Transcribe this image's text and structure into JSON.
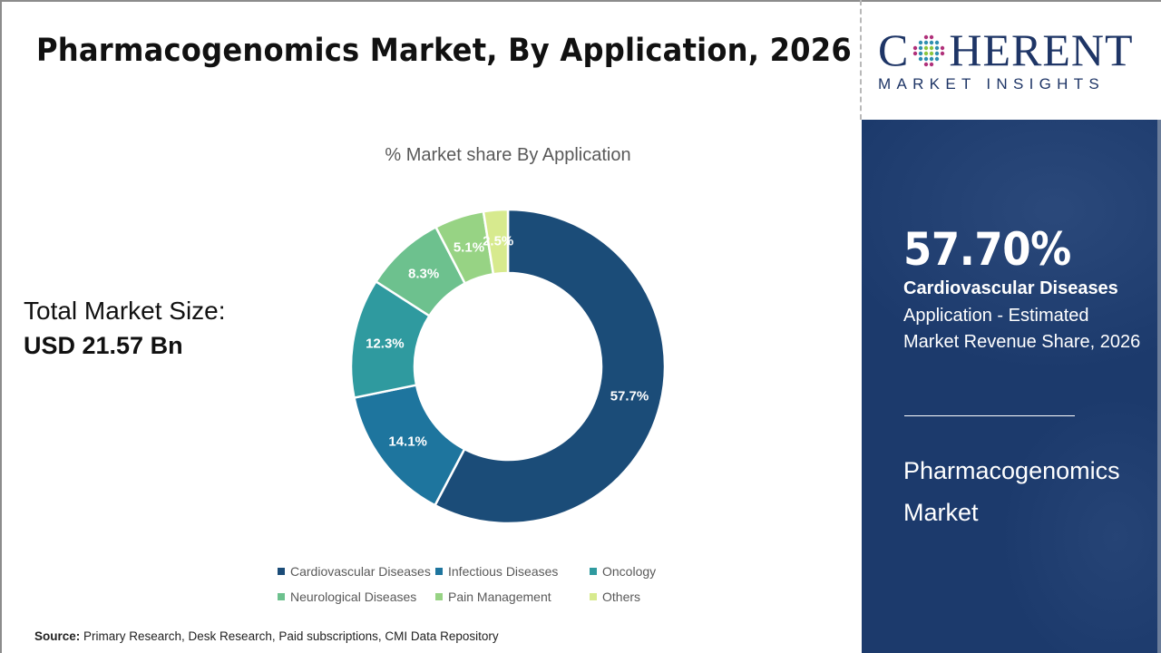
{
  "header": {
    "title": "Pharmacogenomics Market, By Application, 2026"
  },
  "logo": {
    "brand_first_letter": "C",
    "brand_rest": "HERENT",
    "tagline": "MARKET INSIGHTS"
  },
  "total_market": {
    "label": "Total Market Size:",
    "value": "USD 21.57 Bn"
  },
  "chart_data": {
    "type": "pie",
    "subtype": "donut",
    "title": "% Market share By Application",
    "categories": [
      "Cardiovascular Diseases",
      "Infectious Diseases",
      "Oncology",
      "Neurological Diseases",
      "Pain Management",
      "Others"
    ],
    "values": [
      57.7,
      14.1,
      12.3,
      8.3,
      5.1,
      2.5
    ],
    "data_labels": [
      "57.7%",
      "14.1%",
      "12.3%",
      "8.3%",
      "5.1%",
      "2.5%"
    ],
    "colors": [
      "#1b4c78",
      "#1e759e",
      "#2f9a9f",
      "#6dc18e",
      "#97d384",
      "#d7ea8e"
    ],
    "legend_position": "bottom",
    "unit": "%"
  },
  "legend": {
    "items": [
      {
        "label": "Cardiovascular Diseases",
        "color": "#1b4c78"
      },
      {
        "label": "Infectious Diseases",
        "color": "#1e759e"
      },
      {
        "label": "Oncology",
        "color": "#2f9a9f"
      },
      {
        "label": "Neurological Diseases",
        "color": "#6dc18e"
      },
      {
        "label": "Pain Management",
        "color": "#97d384"
      },
      {
        "label": "Others",
        "color": "#d7ea8e"
      }
    ]
  },
  "source": {
    "label": "Source:",
    "text": " Primary Research, Desk Research, Paid subscriptions, CMI Data Repository"
  },
  "side_panel": {
    "highlight_pct": "57.70%",
    "segment_name": "Cardiovascular Diseases",
    "description": "Application - Estimated Market Revenue Share, 2026",
    "market_name": "Pharmacogenomics Market",
    "background_color": "#1c3a6c"
  }
}
